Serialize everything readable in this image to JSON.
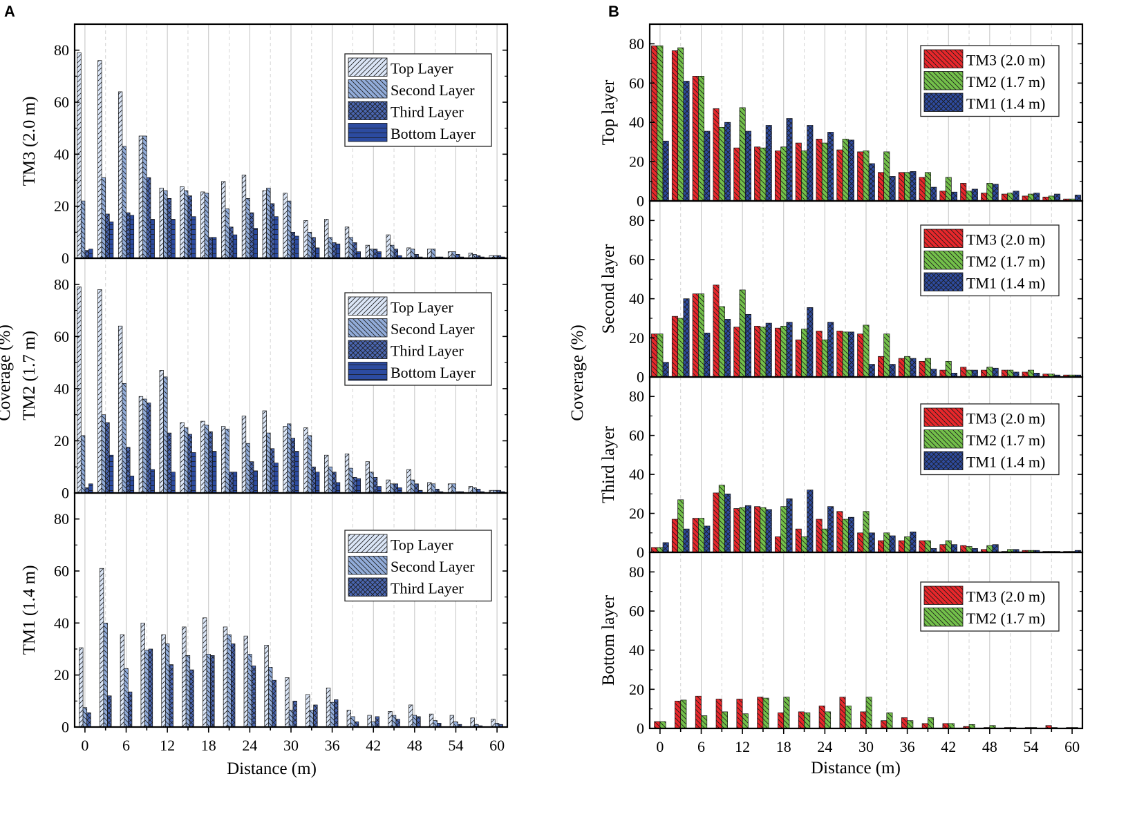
{
  "panel_labels": [
    "A",
    "B"
  ],
  "patterns": {
    "Top Layer": {
      "fill": "#dbe6f7",
      "hatch": "diag-right"
    },
    "Second Layer": {
      "fill": "#92acd9",
      "hatch": "diag-left"
    },
    "Third Layer": {
      "fill": "#4a66b0",
      "hatch": "cross"
    },
    "Bottom Layer": {
      "fill": "#2c4ba0",
      "hatch": "horizontal"
    },
    "TM3 (2.0 m)": {
      "fill": "#e8272b",
      "hatch": "diag-left"
    },
    "TM2 (1.7 m)": {
      "fill": "#73c04a",
      "hatch": "diag-left"
    },
    "TM1 (1.4 m)": {
      "fill": "#2e4b9f",
      "hatch": "cross"
    }
  },
  "chart_data": [
    {
      "panel": "A",
      "type": "bar",
      "xlabel": "Distance (m)",
      "ylabel": "Coverage (%)",
      "x_ticks": [
        0,
        6,
        12,
        18,
        24,
        30,
        36,
        42,
        48,
        54,
        60
      ],
      "y_ticks": [
        0,
        20,
        40,
        60,
        80
      ],
      "ylim": [
        0,
        90
      ],
      "xlim": [
        -1.5,
        61.5
      ],
      "x": [
        0,
        3,
        6,
        9,
        12,
        15,
        18,
        21,
        24,
        27,
        30,
        33,
        36,
        39,
        42,
        45,
        48,
        51,
        54,
        57,
        60
      ],
      "subplots": [
        {
          "ylabel": "TM3 (2.0 m)",
          "series": [
            {
              "name": "Top Layer",
              "values": [
                79,
                76,
                64,
                47,
                27,
                27.5,
                25.5,
                29.5,
                32,
                26,
                25,
                14.5,
                15,
                12,
                5,
                9,
                4,
                3.5,
                2.5,
                2,
                1
              ]
            },
            {
              "name": "Second Layer",
              "values": [
                22,
                31,
                43,
                47,
                26,
                26,
                25,
                19,
                23,
                27,
                22,
                10,
                8,
                8,
                3.5,
                5,
                3.5,
                3.5,
                2.5,
                1.5,
                1
              ]
            },
            {
              "name": "Third Layer",
              "values": [
                3,
                17,
                17.5,
                31,
                23,
                24,
                8,
                12,
                17.5,
                21,
                10,
                8,
                6,
                6,
                3.5,
                3.5,
                1.5,
                0.5,
                1.5,
                1,
                1
              ]
            },
            {
              "name": "Bottom Layer",
              "values": [
                3.5,
                14,
                16.5,
                15,
                15,
                16,
                8,
                9,
                11.5,
                16,
                8.5,
                4,
                5.5,
                2.5,
                2.5,
                1,
                0.5,
                0.5,
                0.5,
                0.5,
                0.5
              ]
            }
          ]
        },
        {
          "ylabel": "TM2 (1.7 m)",
          "series": [
            {
              "name": "Top Layer",
              "values": [
                79,
                78,
                64,
                37,
                47,
                27,
                27.5,
                25.5,
                29.5,
                31.5,
                25.5,
                25,
                14.5,
                15,
                12,
                5,
                9,
                4,
                3.5,
                2.5,
                1
              ]
            },
            {
              "name": "Second Layer",
              "values": [
                22,
                30,
                42,
                36,
                44.5,
                25,
                26,
                24.5,
                19,
                23,
                26.5,
                22,
                10,
                9.5,
                8,
                3.5,
                5,
                3.5,
                3.5,
                2,
                1
              ]
            },
            {
              "name": "Third Layer",
              "values": [
                2,
                27,
                17.5,
                34.5,
                23,
                22.5,
                23.5,
                8,
                12,
                17,
                21,
                10,
                8,
                6,
                6,
                3.5,
                3.5,
                1.5,
                0.5,
                1.5,
                1
              ]
            },
            {
              "name": "Bottom Layer",
              "values": [
                3.5,
                14.5,
                6.5,
                9,
                8,
                15.5,
                16,
                8,
                8.5,
                11.5,
                16,
                8,
                4,
                5.5,
                2.5,
                2,
                1,
                0.5,
                0.5,
                0.5,
                0.5
              ]
            }
          ]
        },
        {
          "ylabel": "TM1 (1.4 m)",
          "series": [
            {
              "name": "Top Layer",
              "values": [
                30.5,
                61,
                35.5,
                40,
                35.5,
                38.5,
                42,
                38.5,
                35,
                31.5,
                19,
                12.5,
                15,
                6.5,
                4.5,
                6,
                8.5,
                5,
                4.5,
                3.5,
                3
              ]
            },
            {
              "name": "Second Layer",
              "values": [
                7.5,
                40,
                22.5,
                29.5,
                32,
                27.5,
                28,
                35.5,
                28,
                23,
                6.5,
                6.5,
                9.5,
                4,
                2,
                4.5,
                4.5,
                2.5,
                2,
                1,
                1.5
              ]
            },
            {
              "name": "Third Layer",
              "values": [
                5.5,
                12,
                13.5,
                30,
                24,
                22,
                27.5,
                32,
                23.5,
                18,
                10,
                8.5,
                10.5,
                2,
                4,
                3,
                4,
                1.5,
                1,
                0.5,
                1
              ]
            }
          ]
        }
      ]
    },
    {
      "panel": "B",
      "type": "bar",
      "xlabel": "Distance (m)",
      "ylabel": "Coverage (%)",
      "x_ticks": [
        0,
        6,
        12,
        18,
        24,
        30,
        36,
        42,
        48,
        54,
        60
      ],
      "y_ticks": [
        0,
        20,
        40,
        60,
        80
      ],
      "ylim": [
        0,
        90
      ],
      "xlim": [
        -1.5,
        61.5
      ],
      "x": [
        0,
        3,
        6,
        9,
        12,
        15,
        18,
        21,
        24,
        27,
        30,
        33,
        36,
        39,
        42,
        45,
        48,
        51,
        54,
        57,
        60
      ],
      "subplots": [
        {
          "ylabel": "Top layer",
          "series": [
            {
              "name": "TM3 (2.0 m)",
              "values": [
                79,
                76.5,
                63.5,
                47,
                27,
                27.5,
                25.5,
                29.5,
                31.5,
                26,
                25,
                14.5,
                14.5,
                12,
                5,
                9,
                4,
                3.5,
                2.5,
                2,
                1
              ]
            },
            {
              "name": "TM2 (1.7 m)",
              "values": [
                79,
                78,
                63.5,
                37.5,
                47.5,
                27,
                27.5,
                25.5,
                29.5,
                31.5,
                25.5,
                25,
                14.5,
                14.5,
                12,
                5,
                9,
                4,
                3.5,
                2.5,
                1
              ]
            },
            {
              "name": "TM1 (1.4 m)",
              "values": [
                30.5,
                61,
                35.5,
                40,
                35.5,
                38.5,
                42,
                38.5,
                35,
                31,
                19,
                12.5,
                15,
                7,
                4.5,
                6,
                8.5,
                5,
                4,
                3.5,
                3
              ]
            }
          ]
        },
        {
          "ylabel": "Second layer",
          "series": [
            {
              "name": "TM3 (2.0 m)",
              "values": [
                22,
                31,
                42.5,
                47,
                25.5,
                26,
                25,
                19,
                23.5,
                23.5,
                22,
                10.5,
                9.5,
                8,
                3.5,
                5,
                3.5,
                3.5,
                2.5,
                1.5,
                1
              ]
            },
            {
              "name": "TM2 (1.7 m)",
              "values": [
                22,
                30,
                42.5,
                36,
                44.5,
                25.5,
                26,
                24.5,
                19,
                23,
                26.5,
                22,
                10.5,
                9.5,
                8,
                3.5,
                5,
                3.5,
                3.5,
                1.5,
                1
              ]
            },
            {
              "name": "TM1 (1.4 m)",
              "values": [
                7.5,
                40,
                22.5,
                29.5,
                32,
                27.5,
                28,
                35.5,
                28,
                23,
                6.5,
                6.5,
                9.5,
                4,
                2,
                3.5,
                4.5,
                2.5,
                2,
                1,
                1
              ]
            }
          ]
        },
        {
          "ylabel": "Third layer",
          "series": [
            {
              "name": "TM3 (2.0 m)",
              "values": [
                2.5,
                17,
                17.5,
                30.5,
                22.5,
                23.5,
                8,
                12,
                17,
                21,
                10,
                6,
                6,
                6,
                4,
                3.5,
                1.5,
                0.5,
                1,
                0.5,
                0.5
              ]
            },
            {
              "name": "TM2 (1.7 m)",
              "values": [
                2.5,
                27,
                17.5,
                34.5,
                23,
                23,
                23.5,
                8,
                12,
                17,
                21,
                10,
                8,
                6,
                6,
                3,
                3.5,
                1.5,
                1,
                0.5,
                0.5
              ]
            },
            {
              "name": "TM1 (1.4 m)",
              "values": [
                5,
                12,
                13.5,
                30,
                24,
                22,
                27.5,
                32,
                23.5,
                18,
                10,
                8.5,
                10.5,
                2,
                4,
                2,
                4,
                1.5,
                1,
                0.5,
                1
              ]
            }
          ]
        },
        {
          "ylabel": "Bottom  layer",
          "series": [
            {
              "name": "TM3 (2.0 m)",
              "values": [
                3.5,
                14,
                16.5,
                15,
                15,
                16,
                8,
                8.5,
                11.5,
                16,
                8.5,
                4,
                5.5,
                2.5,
                2.5,
                1,
                0.5,
                0.5,
                0.5,
                1.5,
                0.5
              ]
            },
            {
              "name": "TM2 (1.7 m)",
              "values": [
                3.5,
                14.5,
                6.5,
                8.5,
                7.5,
                15.5,
                16,
                8,
                8.5,
                11.5,
                16,
                8,
                4,
                5.5,
                2.5,
                2,
                1.5,
                0.5,
                0.5,
                0.5,
                0.5
              ]
            }
          ]
        }
      ]
    }
  ]
}
